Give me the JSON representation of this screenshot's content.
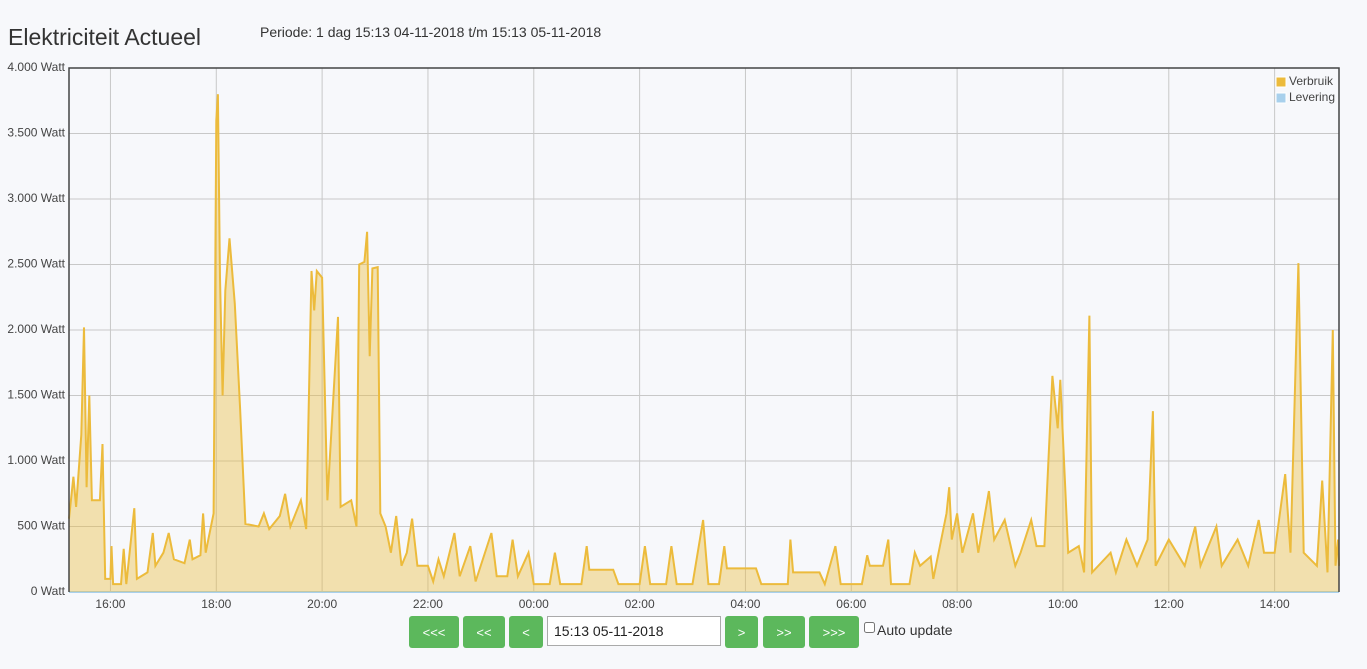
{
  "header": {
    "title": "Elektriciteit Actueel",
    "period": "Periode: 1 dag 15:13 04-11-2018 t/m 15:13 05-11-2018"
  },
  "chart_data": {
    "type": "line",
    "legend": "top-right",
    "grid": true,
    "xlim": [
      15.2167,
      39.2167
    ],
    "xticks": [
      {
        "value": 16,
        "label": "16:00"
      },
      {
        "value": 18,
        "label": "18:00"
      },
      {
        "value": 20,
        "label": "20:00"
      },
      {
        "value": 22,
        "label": "22:00"
      },
      {
        "value": 24,
        "label": "00:00"
      },
      {
        "value": 26,
        "label": "02:00"
      },
      {
        "value": 28,
        "label": "04:00"
      },
      {
        "value": 30,
        "label": "06:00"
      },
      {
        "value": 32,
        "label": "08:00"
      },
      {
        "value": 34,
        "label": "10:00"
      },
      {
        "value": 36,
        "label": "12:00"
      },
      {
        "value": 38,
        "label": "14:00"
      }
    ],
    "ylim": [
      0,
      4000
    ],
    "yticks": [
      {
        "value": 0,
        "label": "0 Watt"
      },
      {
        "value": 500,
        "label": "500 Watt"
      },
      {
        "value": 1000,
        "label": "1.000 Watt"
      },
      {
        "value": 1500,
        "label": "1.500 Watt"
      },
      {
        "value": 2000,
        "label": "2.000 Watt"
      },
      {
        "value": 2500,
        "label": "2.500 Watt"
      },
      {
        "value": 3000,
        "label": "3.000 Watt"
      },
      {
        "value": 3500,
        "label": "3.500 Watt"
      },
      {
        "value": 4000,
        "label": "4.000 Watt"
      }
    ],
    "series": [
      {
        "name": "Verbruik",
        "color": "#ecbb3c",
        "x": [
          15.2167,
          15.3,
          15.35,
          15.45,
          15.5,
          15.55,
          15.6,
          15.65,
          15.8,
          15.85,
          15.9,
          16.0,
          16.02,
          16.05,
          16.2,
          16.25,
          16.3,
          16.45,
          16.5,
          16.7,
          16.8,
          16.85,
          17.0,
          17.1,
          17.2,
          17.4,
          17.5,
          17.55,
          17.7,
          17.75,
          17.8,
          17.85,
          17.95,
          18.0,
          18.03,
          18.07,
          18.12,
          18.17,
          18.25,
          18.35,
          18.45,
          18.55,
          18.8,
          18.9,
          19.0,
          19.2,
          19.3,
          19.4,
          19.6,
          19.7,
          19.8,
          19.85,
          19.9,
          20.0,
          20.1,
          20.3,
          20.35,
          20.55,
          20.65,
          20.7,
          20.8,
          20.85,
          20.9,
          20.95,
          21.05,
          21.1,
          21.2,
          21.3,
          21.4,
          21.5,
          21.6,
          21.7,
          21.8,
          22.0,
          22.1,
          22.2,
          22.3,
          22.5,
          22.6,
          22.8,
          22.9,
          23.2,
          23.3,
          23.5,
          23.6,
          23.7,
          23.9,
          24.0,
          24.3,
          24.4,
          24.5,
          24.9,
          25.0,
          25.05,
          25.5,
          25.6,
          26.0,
          26.1,
          26.2,
          26.5,
          26.6,
          26.7,
          27.0,
          27.2,
          27.3,
          27.5,
          27.6,
          27.65,
          28.2,
          28.3,
          28.8,
          28.85,
          28.9,
          29.4,
          29.5,
          29.7,
          29.8,
          30.2,
          30.3,
          30.35,
          30.6,
          30.7,
          30.75,
          31.1,
          31.2,
          31.3,
          31.5,
          31.55,
          31.8,
          31.85,
          31.9,
          32.0,
          32.1,
          32.3,
          32.4,
          32.6,
          32.7,
          32.9,
          33.1,
          33.2,
          33.4,
          33.5,
          33.65,
          33.8,
          33.9,
          33.95,
          34.1,
          34.3,
          34.4,
          34.5,
          34.55,
          34.9,
          35.0,
          35.2,
          35.4,
          35.6,
          35.7,
          35.75,
          36.0,
          36.3,
          36.5,
          36.6,
          36.9,
          37.0,
          37.3,
          37.5,
          37.7,
          37.8,
          38.0,
          38.1,
          38.2,
          38.3,
          38.45,
          38.55,
          38.8,
          38.9,
          39.0,
          39.1,
          39.15,
          39.2,
          39.2167
        ],
        "values": [
          560,
          880,
          650,
          1200,
          2020,
          800,
          1500,
          700,
          700,
          1130,
          100,
          100,
          350,
          60,
          60,
          330,
          60,
          640,
          100,
          150,
          450,
          200,
          300,
          450,
          250,
          220,
          400,
          250,
          280,
          600,
          300,
          400,
          600,
          3600,
          3800,
          2400,
          1500,
          2300,
          2700,
          2200,
          1400,
          520,
          500,
          600,
          480,
          580,
          750,
          500,
          700,
          480,
          2450,
          2150,
          2450,
          2400,
          700,
          2100,
          650,
          700,
          500,
          2500,
          2520,
          2750,
          1800,
          2470,
          2480,
          600,
          500,
          300,
          580,
          200,
          300,
          560,
          200,
          200,
          80,
          250,
          120,
          450,
          120,
          350,
          80,
          450,
          120,
          120,
          400,
          120,
          300,
          60,
          60,
          300,
          60,
          60,
          350,
          170,
          170,
          60,
          60,
          350,
          60,
          60,
          350,
          60,
          60,
          550,
          60,
          60,
          350,
          180,
          180,
          60,
          60,
          400,
          150,
          150,
          60,
          350,
          60,
          60,
          280,
          200,
          200,
          400,
          60,
          60,
          300,
          200,
          270,
          100,
          600,
          800,
          400,
          600,
          300,
          600,
          300,
          770,
          400,
          550,
          200,
          300,
          550,
          350,
          350,
          1650,
          1250,
          1620,
          300,
          350,
          150,
          2110,
          150,
          300,
          150,
          400,
          200,
          400,
          1380,
          200,
          400,
          200,
          500,
          200,
          500,
          200,
          400,
          200,
          550,
          300,
          300,
          600,
          900,
          300,
          2510,
          300,
          200,
          850,
          150,
          2000,
          200,
          400,
          200
        ]
      },
      {
        "name": "Levering",
        "color": "#a8d0ec",
        "x": [
          15.2167,
          39.2167
        ],
        "values": [
          0,
          0
        ]
      }
    ]
  },
  "controls": {
    "buttons_left": [
      "<<<",
      "<<",
      "<"
    ],
    "date": "15:13 05-11-2018",
    "buttons_right": [
      ">",
      ">>",
      ">>>"
    ],
    "auto_update": "Auto update"
  }
}
